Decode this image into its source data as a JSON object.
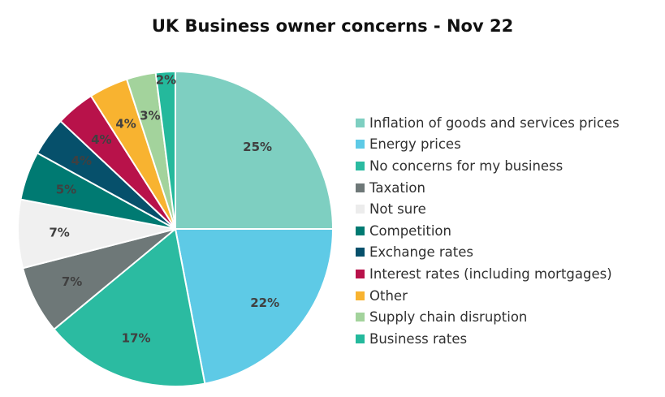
{
  "chart_data": {
    "type": "pie",
    "title": "UK Business owner concerns - Nov 22",
    "legend_position": "right",
    "series": [
      {
        "name": "Inflation of goods and services prices",
        "value": 25,
        "label": "25%",
        "color": "#7ecfc1"
      },
      {
        "name": "Energy prices",
        "value": 22,
        "label": "22%",
        "color": "#5ecae6"
      },
      {
        "name": "No concerns for my business",
        "value": 17,
        "label": "17%",
        "color": "#2bbba1"
      },
      {
        "name": "Taxation",
        "value": 7,
        "label": "7%",
        "color": "#6e7878"
      },
      {
        "name": "Not sure",
        "value": 7,
        "label": "7%",
        "color": "#f0f0f0"
      },
      {
        "name": "Competition",
        "value": 5,
        "label": "5%",
        "color": "#007a72"
      },
      {
        "name": "Exchange rates",
        "value": 4,
        "label": "4%",
        "color": "#06506b"
      },
      {
        "name": "Interest rates (including mortgages)",
        "value": 4,
        "label": "4%",
        "color": "#b8124a"
      },
      {
        "name": "Other",
        "value": 4,
        "label": "4%",
        "color": "#f8b330"
      },
      {
        "name": "Supply chain disruption",
        "value": 3,
        "label": "3%",
        "color": "#a3d39c"
      },
      {
        "name": "Business rates",
        "value": 2,
        "label": "2%",
        "color": "#24b99c"
      }
    ]
  }
}
